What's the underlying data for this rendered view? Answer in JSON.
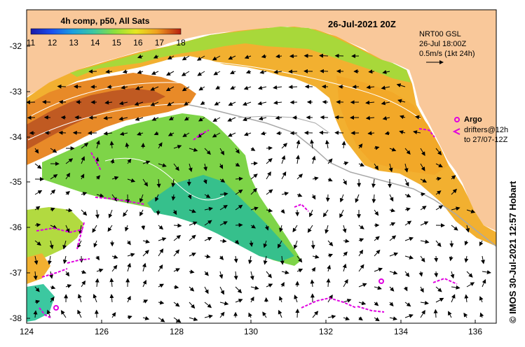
{
  "map": {
    "title": "26-Jul-2021 20Z",
    "legend": {
      "title": "4h comp, p50, All Sats",
      "ticks": [
        "11",
        "12",
        "13",
        "14",
        "15",
        "16",
        "17",
        "18"
      ]
    },
    "current_info": {
      "line1": "NRT00 GSL",
      "line2": "26-Jul 18:00Z",
      "line3": "0.5m/s (1kt 24h)"
    },
    "argo_label": "Argo",
    "drifters_line1": "drifters@12h",
    "drifters_line2": "to 27/07-12Z",
    "credit": "© IMOS 30-Jul-2021 12:57 Hobart",
    "x_ticks": [
      "124",
      "126",
      "128",
      "130",
      "132",
      "134",
      "136"
    ],
    "y_ticks": [
      "-32",
      "-33",
      "-34",
      "-35",
      "-36",
      "-37",
      "-38"
    ],
    "colors": {
      "land": "#f9c89a",
      "frame": "#000000",
      "argo": "#e000e0",
      "drifter": "#e000e0",
      "contour": "#a8a8a8"
    }
  }
}
